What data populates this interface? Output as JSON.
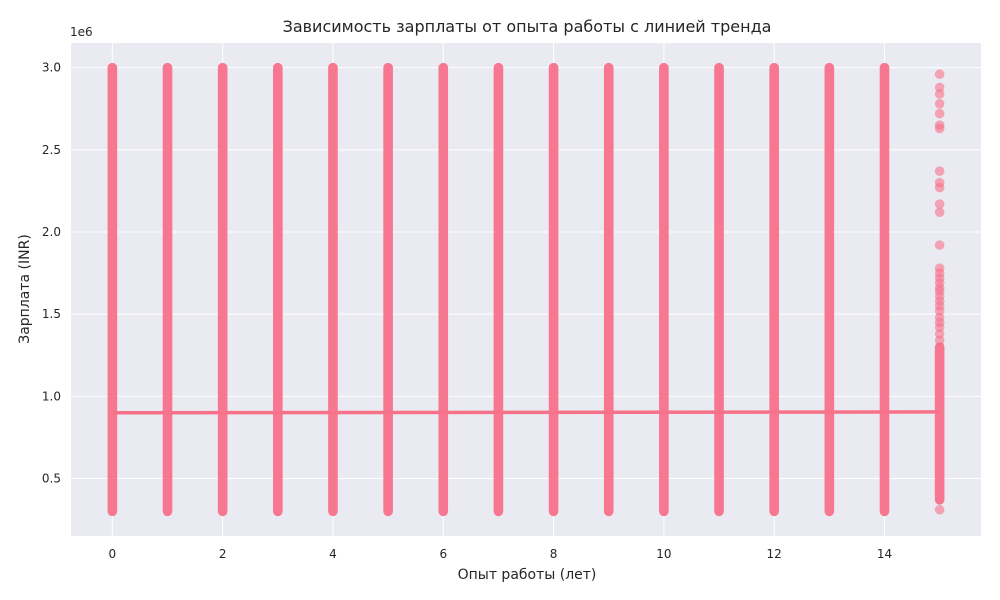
{
  "chart_data": {
    "type": "scatter",
    "title": "Зависимость зарплаты от опыта работы с линией тренда",
    "xlabel": "Опыт работы (лет)",
    "ylabel": "Зарплата (INR)",
    "y_offset_label": "1e6",
    "xlim": [
      -0.75,
      15.75
    ],
    "ylim": [
      150000,
      3150000
    ],
    "x_ticks": [
      0,
      2,
      4,
      6,
      8,
      10,
      12,
      14
    ],
    "y_ticks": [
      500000,
      1000000,
      1500000,
      2000000,
      2500000,
      3000000
    ],
    "y_tick_labels": [
      "0.5",
      "1.0",
      "1.5",
      "2.0",
      "2.5",
      "3.0"
    ],
    "grid": true,
    "colors": {
      "points": "#f77189",
      "trend": "#f77189",
      "background": "#eaeaf2",
      "grid": "#ffffff"
    },
    "series": [
      {
        "kind": "scatter-column-range",
        "ranges": [
          {
            "x": 0,
            "y_min": 300000,
            "y_max": 3000000
          },
          {
            "x": 1,
            "y_min": 300000,
            "y_max": 3000000
          },
          {
            "x": 2,
            "y_min": 300000,
            "y_max": 3000000
          },
          {
            "x": 3,
            "y_min": 300000,
            "y_max": 3000000
          },
          {
            "x": 4,
            "y_min": 300000,
            "y_max": 3000000
          },
          {
            "x": 5,
            "y_min": 300000,
            "y_max": 3000000
          },
          {
            "x": 6,
            "y_min": 300000,
            "y_max": 3000000
          },
          {
            "x": 7,
            "y_min": 300000,
            "y_max": 3000000
          },
          {
            "x": 8,
            "y_min": 300000,
            "y_max": 3000000
          },
          {
            "x": 9,
            "y_min": 300000,
            "y_max": 3000000
          },
          {
            "x": 10,
            "y_min": 300000,
            "y_max": 3000000
          },
          {
            "x": 11,
            "y_min": 300000,
            "y_max": 3000000
          },
          {
            "x": 12,
            "y_min": 300000,
            "y_max": 3000000
          },
          {
            "x": 13,
            "y_min": 300000,
            "y_max": 3000000
          },
          {
            "x": 14,
            "y_min": 300000,
            "y_max": 3000000
          },
          {
            "x": 15,
            "y_min": 370000,
            "y_max": 1300000
          }
        ],
        "points": [
          {
            "x": 15,
            "y": 2960000
          },
          {
            "x": 15,
            "y": 2880000
          },
          {
            "x": 15,
            "y": 2840000
          },
          {
            "x": 15,
            "y": 2780000
          },
          {
            "x": 15,
            "y": 2720000
          },
          {
            "x": 15,
            "y": 2650000
          },
          {
            "x": 15,
            "y": 2630000
          },
          {
            "x": 15,
            "y": 2370000
          },
          {
            "x": 15,
            "y": 2300000
          },
          {
            "x": 15,
            "y": 2270000
          },
          {
            "x": 15,
            "y": 2170000
          },
          {
            "x": 15,
            "y": 2120000
          },
          {
            "x": 15,
            "y": 1920000
          },
          {
            "x": 15,
            "y": 1780000
          },
          {
            "x": 15,
            "y": 1750000
          },
          {
            "x": 15,
            "y": 1720000
          },
          {
            "x": 15,
            "y": 1690000
          },
          {
            "x": 15,
            "y": 1660000
          },
          {
            "x": 15,
            "y": 1640000
          },
          {
            "x": 15,
            "y": 1610000
          },
          {
            "x": 15,
            "y": 1580000
          },
          {
            "x": 15,
            "y": 1550000
          },
          {
            "x": 15,
            "y": 1520000
          },
          {
            "x": 15,
            "y": 1480000
          },
          {
            "x": 15,
            "y": 1450000
          },
          {
            "x": 15,
            "y": 1420000
          },
          {
            "x": 15,
            "y": 1380000
          },
          {
            "x": 15,
            "y": 1340000
          },
          {
            "x": 15,
            "y": 310000
          }
        ]
      },
      {
        "kind": "trend-line",
        "x": [
          0,
          15
        ],
        "y": [
          900000,
          905000
        ]
      }
    ]
  }
}
